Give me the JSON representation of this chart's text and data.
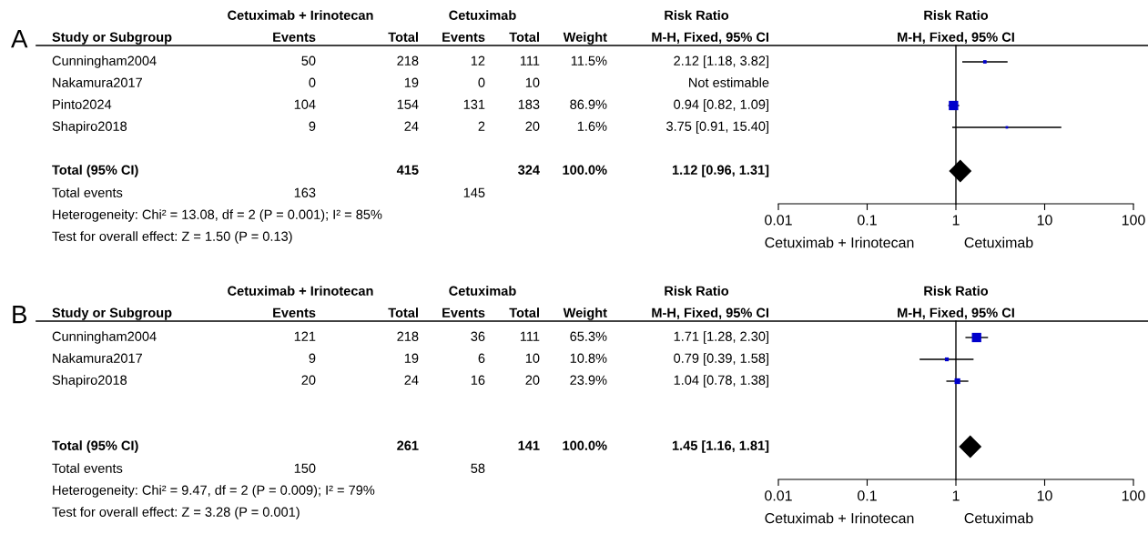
{
  "chart_data": [
    {
      "type": "other",
      "title": "A",
      "ylabel": "Study or Subgroup",
      "annotations": [
        "Cetuximab + Irinotecan",
        "Cetuximab",
        "Risk Ratio",
        "Heterogeneity: Chi² = 13.08, df = 2 (P = 0.001); I² = 85%",
        "Test for overall effect: Z = 1.50 (P = 0.13)"
      ],
      "categories": [
        "Events",
        "Total",
        "Events",
        "Total",
        "Weight",
        "M-H, Fixed, 95% CI"
      ],
      "y_categories": [
        "Cunningham2004",
        "Nakamura2017",
        "Pinto2024",
        "Shapiro2018",
        "Total (95% CI)",
        "Total events"
      ],
      "cell_labels": [
        [
          "50",
          "218",
          "12",
          "111",
          "11.5%",
          "2.12 [1.18, 3.82]"
        ],
        [
          "0",
          "19",
          "0",
          "10",
          null,
          "Not estimable"
        ],
        [
          "104",
          "154",
          "131",
          "183",
          "86.9%",
          "0.94 [0.82, 1.09]"
        ],
        [
          "9",
          "24",
          "2",
          "20",
          "1.6%",
          "3.75 [0.91, 15.40]"
        ],
        [
          null,
          "415",
          null,
          "324",
          "100.0%",
          "1.12 [0.96, 1.31]"
        ],
        [
          "163",
          null,
          "145",
          null,
          null,
          null
        ]
      ]
    },
    {
      "type": "scatter",
      "orientation": "horizontal",
      "title": "Risk Ratio",
      "subtitle": "M-H, Fixed, 95% CI",
      "categories": [
        null,
        null,
        null,
        null,
        null,
        null,
        null
      ],
      "log": "x",
      "xlim": [
        0.01,
        100
      ],
      "xticks": [
        0.01,
        0.1,
        1,
        10,
        100
      ],
      "grid": false,
      "legend": false,
      "ref_lines": [
        {
          "axis": "x",
          "value": 1,
          "color": "#000000"
        }
      ],
      "annotations": [
        "Cetuximab + Irinotecan",
        "Cetuximab"
      ],
      "series": [
        {
          "type": "bubble",
          "marker": "square",
          "color": "#0000cc",
          "values": [
            2.12,
            null,
            0.94,
            3.75,
            null,
            null,
            null
          ],
          "errors": [
            [
              1.18,
              3.82
            ],
            null,
            [
              0.82,
              1.09
            ],
            [
              0.91,
              15.4
            ],
            null,
            null,
            null
          ],
          "sizes": [
            0.132,
            null,
            1,
            0.018,
            null,
            null,
            null
          ]
        },
        {
          "type": "scatter",
          "marker": "diamond",
          "color": "#000000",
          "values": [
            null,
            null,
            null,
            null,
            null,
            1.12,
            null
          ],
          "errors": [
            null,
            null,
            null,
            null,
            null,
            [
              0.96,
              1.31
            ],
            null
          ]
        }
      ]
    },
    {
      "type": "other",
      "title": "B",
      "ylabel": "Study or Subgroup",
      "annotations": [
        "Cetuximab + Irinotecan",
        "Cetuximab",
        "Risk Ratio",
        "Heterogeneity: Chi² = 9.47, df = 2 (P = 0.009); I² = 79%",
        "Test for overall effect: Z = 3.28 (P = 0.001)"
      ],
      "categories": [
        "Events",
        "Total",
        "Events",
        "Total",
        "Weight",
        "M-H, Fixed, 95% CI"
      ],
      "y_categories": [
        "Cunningham2004",
        "Nakamura2017",
        "Shapiro2018",
        "Total (95% CI)",
        "Total events"
      ],
      "cell_labels": [
        [
          "121",
          "218",
          "36",
          "111",
          "65.3%",
          "1.71 [1.28, 2.30]"
        ],
        [
          "9",
          "19",
          "6",
          "10",
          "10.8%",
          "0.79 [0.39, 1.58]"
        ],
        [
          "20",
          "24",
          "16",
          "20",
          "23.9%",
          "1.04 [0.78, 1.38]"
        ],
        [
          null,
          "261",
          null,
          "141",
          "100.0%",
          "1.45 [1.16, 1.81]"
        ],
        [
          "150",
          null,
          "58",
          null,
          null,
          null
        ]
      ]
    },
    {
      "type": "scatter",
      "orientation": "horizontal",
      "title": "Risk Ratio",
      "subtitle": "M-H, Fixed, 95% CI",
      "categories": [
        null,
        null,
        null,
        null,
        null,
        null,
        null
      ],
      "log": "x",
      "xlim": [
        0.01,
        100
      ],
      "xticks": [
        0.01,
        0.1,
        1,
        10,
        100
      ],
      "grid": false,
      "legend": false,
      "ref_lines": [
        {
          "axis": "x",
          "value": 1,
          "color": "#000000"
        }
      ],
      "annotations": [
        "Cetuximab + Irinotecan",
        "Cetuximab"
      ],
      "series": [
        {
          "type": "bubble",
          "marker": "square",
          "color": "#0000cc",
          "values": [
            1.71,
            0.79,
            1.04,
            null,
            null,
            null,
            null
          ],
          "errors": [
            [
              1.28,
              2.3
            ],
            [
              0.39,
              1.58
            ],
            [
              0.78,
              1.38
            ],
            null,
            null,
            null,
            null
          ],
          "sizes": [
            1,
            0.165,
            0.366,
            null,
            null,
            null,
            null
          ]
        },
        {
          "type": "scatter",
          "marker": "diamond",
          "color": "#000000",
          "values": [
            null,
            null,
            null,
            null,
            null,
            1.45,
            null
          ],
          "errors": [
            null,
            null,
            null,
            null,
            null,
            [
              1.16,
              1.81
            ],
            null
          ]
        }
      ]
    }
  ]
}
